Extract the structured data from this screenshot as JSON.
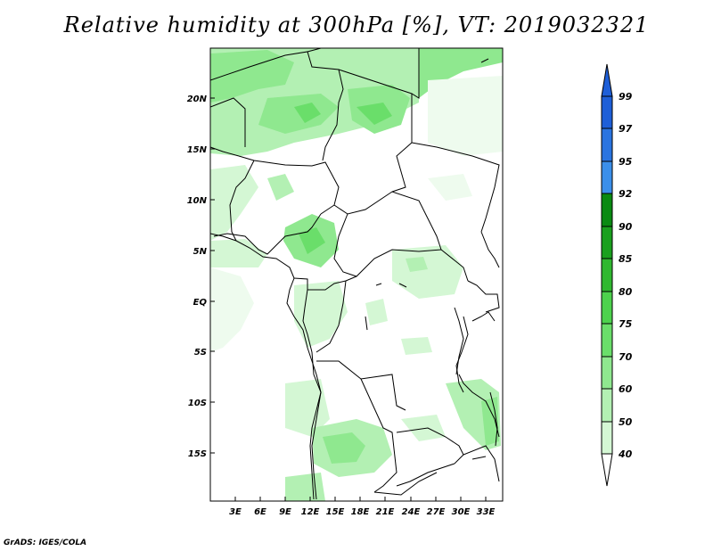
{
  "title": "Relative humidity at 300hPa [%], VT: 2019032321",
  "credit": "GrADS: IGES/COLA",
  "map": {
    "lat_labels": [
      "20N",
      "15N",
      "10N",
      "5N",
      "EQ",
      "5S",
      "10S",
      "15S"
    ],
    "lon_labels": [
      "3E",
      "6E",
      "9E",
      "12E",
      "15E",
      "18E",
      "21E",
      "24E",
      "27E",
      "30E",
      "33E"
    ]
  },
  "colorbar": {
    "labels": [
      "99",
      "97",
      "95",
      "92",
      "90",
      "85",
      "80",
      "75",
      "70",
      "60",
      "50",
      "40"
    ],
    "colors": [
      "#1e5fd8",
      "#2a74e0",
      "#3b8fea",
      "#0a8a12",
      "#1aa01e",
      "#30b830",
      "#4dd24d",
      "#6ade6a",
      "#8fe88f",
      "#b3f0b3",
      "#d4f7d4",
      "#eefbee"
    ]
  }
}
